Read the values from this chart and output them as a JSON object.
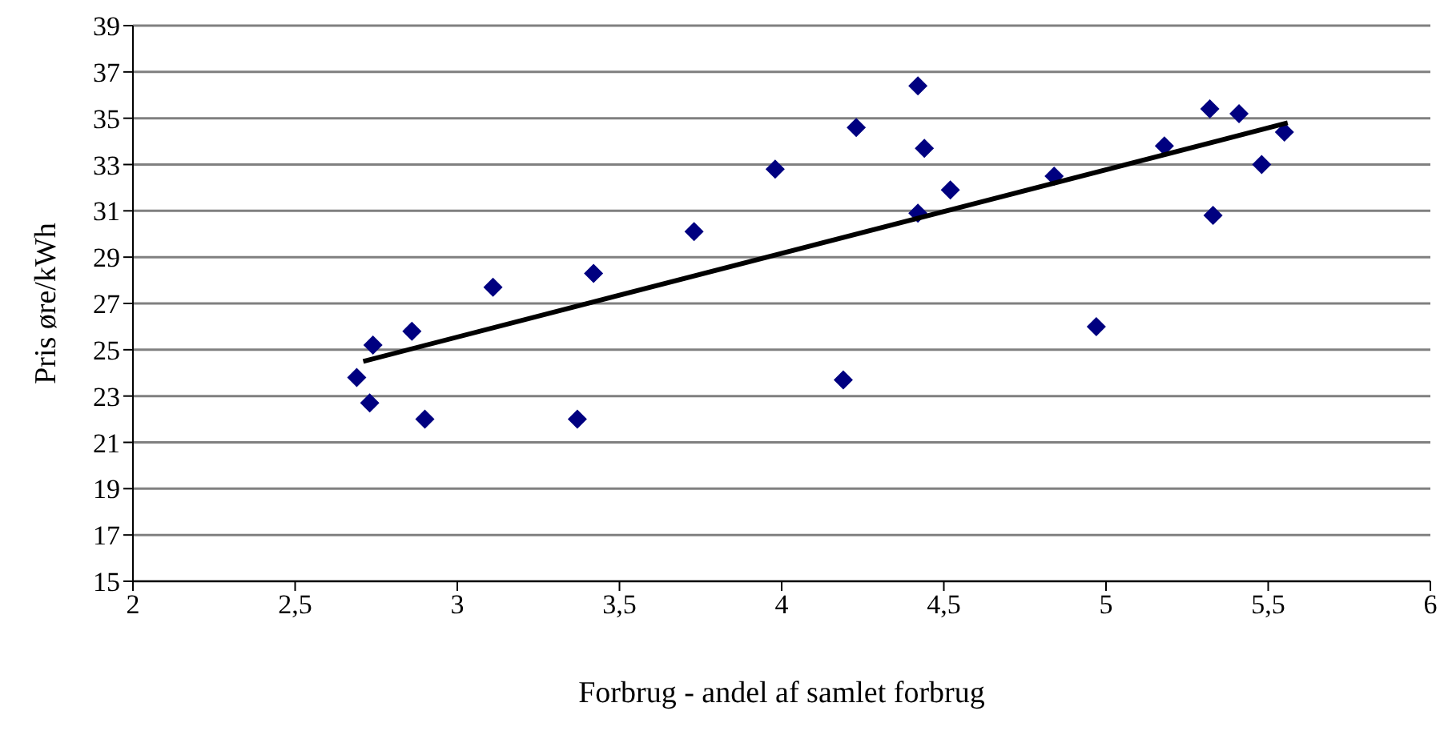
{
  "chart_data": {
    "type": "scatter",
    "xlabel": "Forbrug - andel af samlet forbrug",
    "ylabel": "Pris øre/kWh",
    "xlim": [
      2,
      6
    ],
    "xticks": [
      2,
      {
        "value": 2.5,
        "label": "2,5"
      },
      3,
      {
        "value": 3.5,
        "label": "3,5"
      },
      4,
      {
        "value": 4.5,
        "label": "4,5"
      },
      5,
      {
        "value": 5.5,
        "label": "5,5"
      },
      6
    ],
    "ylim": [
      15,
      39
    ],
    "yticks": [
      15,
      17,
      19,
      21,
      23,
      25,
      27,
      29,
      31,
      33,
      35,
      37,
      39
    ],
    "grid": "y",
    "series": [
      {
        "color": "#000080",
        "marker": "diamond",
        "x": [
          2.69,
          2.73,
          2.74,
          2.86,
          2.9,
          3.11,
          3.37,
          3.42,
          3.73,
          3.98,
          4.19,
          4.23,
          4.42,
          4.42,
          4.44,
          4.52,
          4.84,
          4.97,
          5.18,
          5.32,
          5.33,
          5.41,
          5.48,
          5.55
        ],
        "values": [
          23.8,
          22.7,
          25.2,
          25.8,
          22.0,
          27.7,
          22.0,
          28.3,
          30.1,
          32.8,
          23.7,
          34.6,
          30.9,
          36.4,
          33.7,
          31.9,
          32.5,
          26.0,
          33.8,
          35.4,
          30.8,
          35.2,
          33.0,
          34.4
        ]
      },
      {
        "type": "line",
        "color": "#000000",
        "marker": "none",
        "x": [
          2.71,
          5.56
        ],
        "values": [
          24.5,
          34.8
        ]
      }
    ]
  }
}
